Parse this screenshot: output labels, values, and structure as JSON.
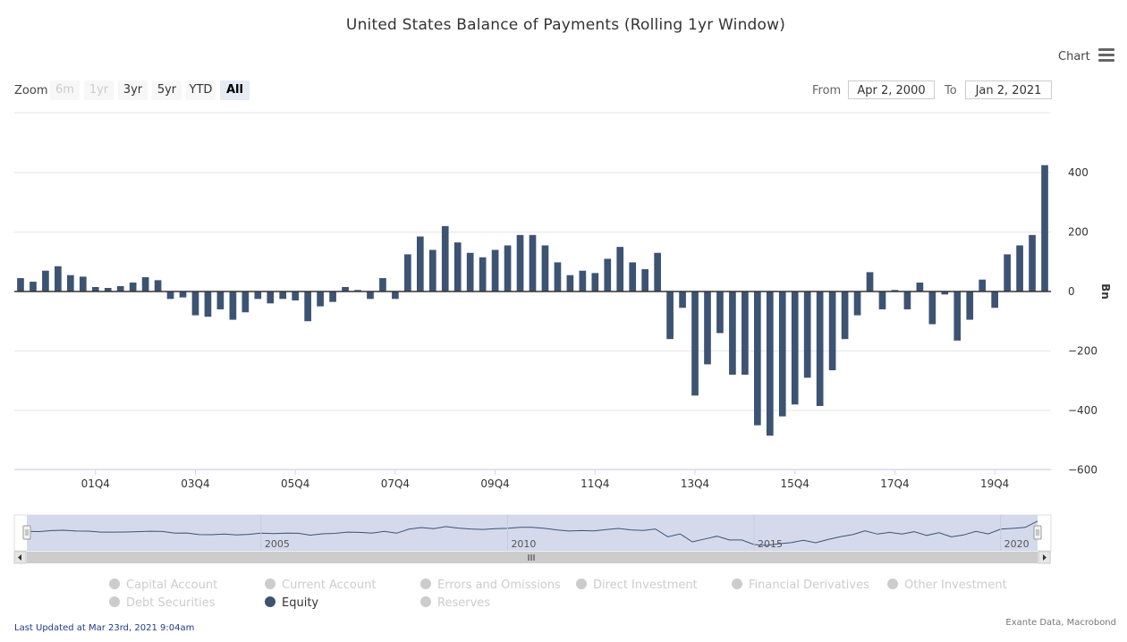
{
  "title": "United States Balance of Payments (Rolling 1yr Window)",
  "menu": {
    "label": "Chart",
    "icon": "hamburger-menu-icon"
  },
  "zoom": {
    "label": "Zoom",
    "buttons": [
      {
        "label": "6m",
        "state": "disabled"
      },
      {
        "label": "1yr",
        "state": "disabled"
      },
      {
        "label": "3yr",
        "state": "normal"
      },
      {
        "label": "5yr",
        "state": "normal"
      },
      {
        "label": "YTD",
        "state": "normal"
      },
      {
        "label": "All",
        "state": "active"
      }
    ]
  },
  "range": {
    "from_label": "From",
    "from_value": "Apr 2, 2000",
    "to_label": "To",
    "to_value": "Jan 2, 2021"
  },
  "colors": {
    "bar": "#3d5373",
    "grid": "#e6e6e6",
    "navigator_fill": "#cfd6ea"
  },
  "chart_data": {
    "type": "bar",
    "ylabel": "Bn",
    "ylim": [
      -600,
      400
    ],
    "yticks": [
      400,
      200,
      0,
      -200,
      -400,
      -600
    ],
    "yticklabels": [
      "400",
      "200",
      "0",
      "−200",
      "−400",
      "−600"
    ],
    "xticklabels": [
      "01Q4",
      "03Q4",
      "05Q4",
      "07Q4",
      "09Q4",
      "11Q4",
      "13Q4",
      "15Q4",
      "17Q4",
      "19Q4"
    ],
    "categories": [
      "00Q2",
      "00Q3",
      "00Q4",
      "01Q1",
      "01Q2",
      "01Q3",
      "01Q4",
      "02Q1",
      "02Q2",
      "02Q3",
      "02Q4",
      "03Q1",
      "03Q2",
      "03Q3",
      "03Q4",
      "04Q1",
      "04Q2",
      "04Q3",
      "04Q4",
      "05Q1",
      "05Q2",
      "05Q3",
      "05Q4",
      "06Q1",
      "06Q2",
      "06Q3",
      "06Q4",
      "07Q1",
      "07Q2",
      "07Q3",
      "07Q4",
      "08Q1",
      "08Q2",
      "08Q3",
      "08Q4",
      "09Q1",
      "09Q2",
      "09Q3",
      "09Q4",
      "10Q1",
      "10Q2",
      "10Q3",
      "10Q4",
      "11Q1",
      "11Q2",
      "11Q3",
      "11Q4",
      "12Q1",
      "12Q2",
      "12Q3",
      "12Q4",
      "13Q1",
      "13Q2",
      "13Q3",
      "13Q4",
      "14Q1",
      "14Q2",
      "14Q3",
      "14Q4",
      "15Q1",
      "15Q2",
      "15Q3",
      "15Q4",
      "16Q1",
      "16Q2",
      "16Q3",
      "16Q4",
      "17Q1",
      "17Q2",
      "17Q3",
      "17Q4",
      "18Q1",
      "18Q2",
      "18Q3",
      "18Q4",
      "19Q1",
      "19Q2",
      "19Q3",
      "19Q4",
      "20Q1",
      "20Q2",
      "20Q3",
      "20Q4"
    ],
    "series": [
      {
        "name": "Equity",
        "values": [
          45,
          33,
          70,
          85,
          55,
          50,
          15,
          12,
          18,
          30,
          48,
          38,
          -25,
          -20,
          -80,
          -85,
          -60,
          -95,
          -70,
          -25,
          -40,
          -25,
          -30,
          -100,
          -50,
          -35,
          15,
          5,
          -25,
          45,
          -25,
          125,
          185,
          140,
          220,
          165,
          130,
          115,
          140,
          155,
          190,
          190,
          155,
          98,
          55,
          70,
          62,
          110,
          150,
          98,
          75,
          130,
          -160,
          -55,
          -350,
          -245,
          -140,
          -280,
          -280,
          -450,
          -485,
          -420,
          -380,
          -290,
          -385,
          -265,
          -160,
          -80,
          65,
          -60,
          5,
          -60,
          30,
          -110,
          -10,
          -165,
          -95,
          40,
          -55,
          125,
          155,
          190,
          425
        ]
      }
    ],
    "navigator": {
      "xticklabels": [
        "2005",
        "2010",
        "2015",
        "2020"
      ]
    },
    "legend_placement": "bottom",
    "legend": [
      {
        "name": "Capital Account",
        "visible": false
      },
      {
        "name": "Current Account",
        "visible": false
      },
      {
        "name": "Errors and Omissions",
        "visible": false
      },
      {
        "name": "Direct Investment",
        "visible": false
      },
      {
        "name": "Financial Derivatives",
        "visible": false
      },
      {
        "name": "Other Investment",
        "visible": false
      },
      {
        "name": "Debt Securities",
        "visible": false
      },
      {
        "name": "Equity",
        "visible": true
      },
      {
        "name": "Reserves",
        "visible": false
      }
    ]
  },
  "footer": {
    "updated": "Last Updated at Mar 23rd, 2021 9:04am",
    "source": "Exante Data, Macrobond"
  }
}
